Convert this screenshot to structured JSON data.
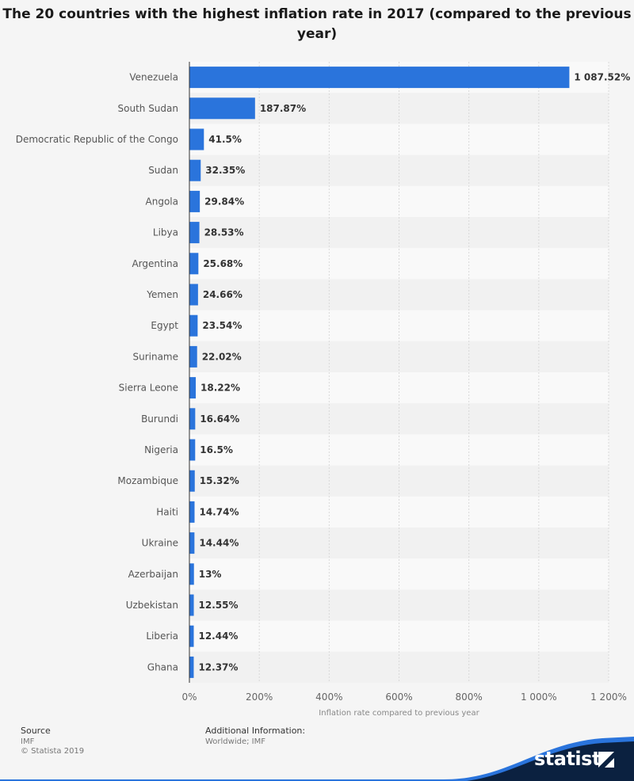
{
  "chart_data": {
    "type": "bar",
    "orientation": "horizontal",
    "title": "The 20 countries with the highest inflation rate in 2017 (compared to the previous year)",
    "xlabel": "Inflation rate compared to previous year",
    "categories": [
      "Venezuela",
      "South Sudan",
      "Democratic Republic of the Congo",
      "Sudan",
      "Angola",
      "Libya",
      "Argentina",
      "Yemen",
      "Egypt",
      "Suriname",
      "Sierra Leone",
      "Burundi",
      "Nigeria",
      "Mozambique",
      "Haiti",
      "Ukraine",
      "Azerbaijan",
      "Uzbekistan",
      "Liberia",
      "Ghana"
    ],
    "values": [
      1087.52,
      187.87,
      41.5,
      32.35,
      29.84,
      28.53,
      25.68,
      24.66,
      23.54,
      22.02,
      18.22,
      16.64,
      16.5,
      15.32,
      14.74,
      14.44,
      13,
      12.55,
      12.44,
      12.37
    ],
    "value_labels": [
      "1 087.52%",
      "187.87%",
      "41.5%",
      "32.35%",
      "29.84%",
      "28.53%",
      "25.68%",
      "24.66%",
      "23.54%",
      "22.02%",
      "18.22%",
      "16.64%",
      "16.5%",
      "15.32%",
      "14.74%",
      "14.44%",
      "13%",
      "12.55%",
      "12.44%",
      "12.37%"
    ],
    "xlim": [
      0,
      1200
    ],
    "ticks": [
      0,
      200,
      400,
      600,
      800,
      1000,
      1200
    ],
    "tick_labels": [
      "0%",
      "200%",
      "400%",
      "600%",
      "800%",
      "1 000%",
      "1 200%"
    ],
    "grid": true,
    "bar_color": "#2a74dc"
  },
  "footer": {
    "source_heading": "Source",
    "source_lines": [
      "IMF",
      "© Statista 2019"
    ],
    "info_heading": "Additional Information:",
    "info_text": "Worldwide; IMF",
    "brand": "statista"
  },
  "colors": {
    "footer_dark": "#0b2140",
    "footer_accent": "#2a74dc"
  }
}
